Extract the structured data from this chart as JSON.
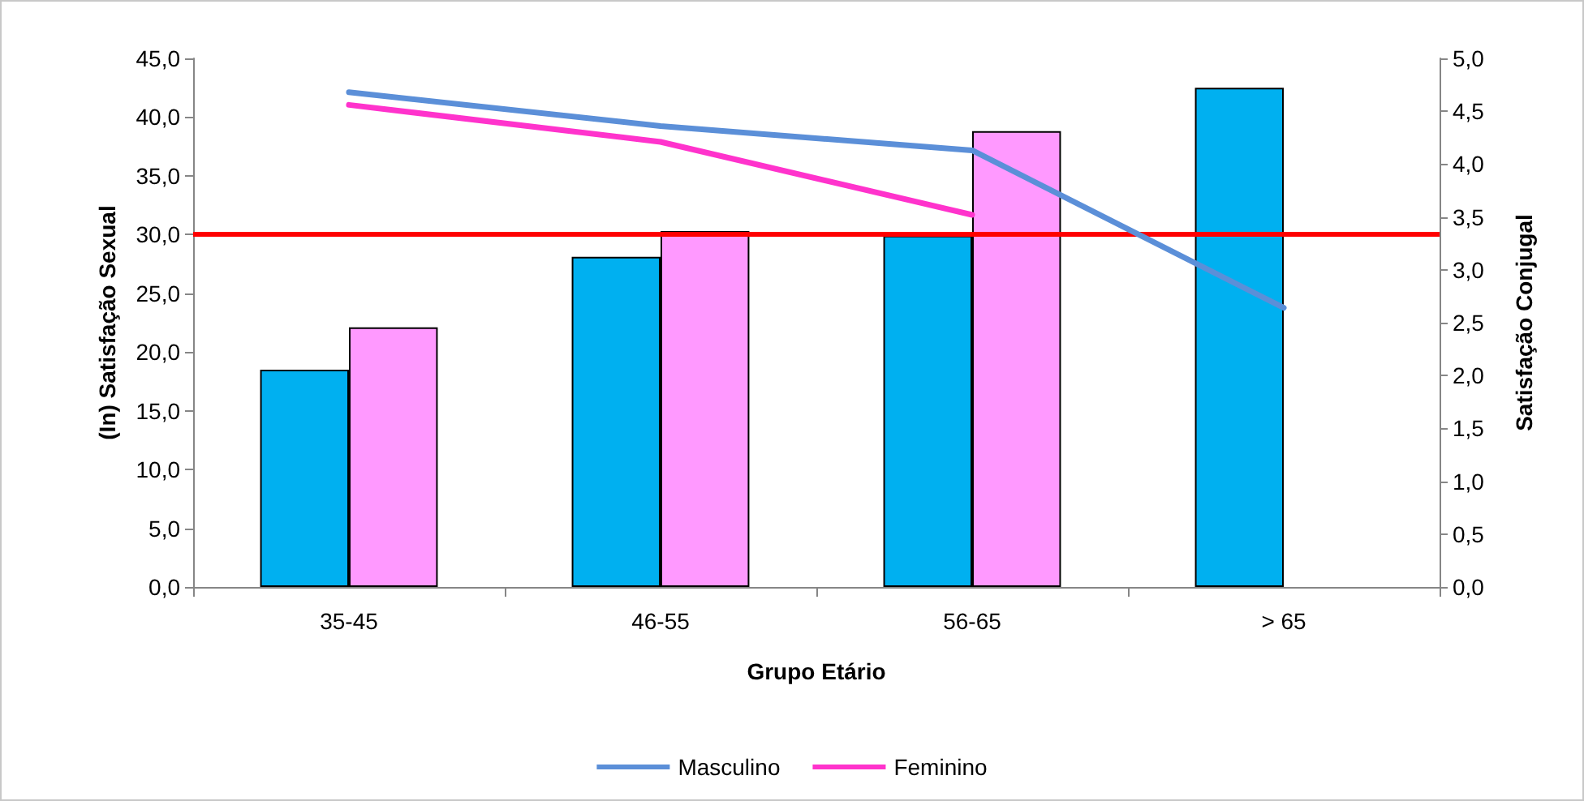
{
  "chart_data": {
    "type": "bar",
    "xlabel": "Grupo Etário",
    "ylabel": "(In) Satisfação Sexual",
    "y2label": "Satisfação Conjugal",
    "categories": [
      "35-45",
      "46-55",
      "56-65",
      "> 65"
    ],
    "series": [
      {
        "color": "#00b0f0",
        "values": [
          18.5,
          28.1,
          29.9,
          42.5
        ]
      },
      {
        "color": "#ff99ff",
        "values": [
          22.1,
          30.3,
          38.8,
          null
        ]
      },
      {
        "name": "Masculino",
        "type": "line",
        "axis": "y2",
        "color": "#5b8fd8",
        "values": [
          4.68,
          4.36,
          4.13,
          2.64
        ]
      },
      {
        "name": "Feminino",
        "type": "line",
        "axis": "y2",
        "color": "#ff33cc",
        "values": [
          4.56,
          4.21,
          3.52,
          null
        ]
      }
    ],
    "ylim": [
      0,
      45
    ],
    "yticks": [
      {
        "value": 0,
        "label": "0,0"
      },
      {
        "value": 5,
        "label": "5,0"
      },
      {
        "value": 10,
        "label": "10,0"
      },
      {
        "value": 15,
        "label": "15,0"
      },
      {
        "value": 20,
        "label": "20,0"
      },
      {
        "value": 25,
        "label": "25,0"
      },
      {
        "value": 30,
        "label": "30,0"
      },
      {
        "value": 35,
        "label": "35,0"
      },
      {
        "value": 40,
        "label": "40,0"
      },
      {
        "value": 45,
        "label": "45,0"
      }
    ],
    "y2lim": [
      0,
      5
    ],
    "y2ticks": [
      {
        "value": 0,
        "label": "0,0"
      },
      {
        "value": 0.5,
        "label": "0,5"
      },
      {
        "value": 1,
        "label": "1,0"
      },
      {
        "value": 1.5,
        "label": "1,5"
      },
      {
        "value": 2,
        "label": "2,0"
      },
      {
        "value": 2.5,
        "label": "2,5"
      },
      {
        "value": 3,
        "label": "3,0"
      },
      {
        "value": 3.5,
        "label": "3,5"
      },
      {
        "value": 4,
        "label": "4,0"
      },
      {
        "value": 4.5,
        "label": "4,5"
      },
      {
        "value": 5,
        "label": "5,0"
      }
    ],
    "ref_lines": [
      {
        "axis": "y",
        "value": 30,
        "color": "#ff0000"
      }
    ],
    "grid": false,
    "legend": "bottom",
    "marker": "none",
    "line_style": "solid"
  }
}
